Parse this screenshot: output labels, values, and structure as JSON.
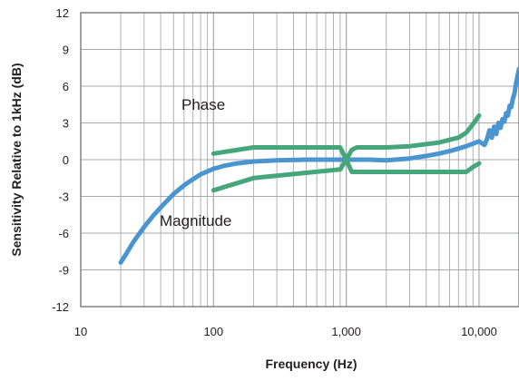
{
  "chart_data": {
    "type": "line",
    "xlabel": "Frequency (Hz)",
    "ylabel": "Sensitivity Relative to 1kHz (dB)",
    "xscale": "log",
    "xlim": [
      10,
      20000
    ],
    "ylim": [
      -12,
      12
    ],
    "grid": true,
    "legend": "none",
    "x_ticks": [
      {
        "value": 10,
        "label": "10"
      },
      {
        "value": 100,
        "label": "100"
      },
      {
        "value": 1000,
        "label": "1,000"
      },
      {
        "value": 10000,
        "label": "10,000"
      }
    ],
    "y_ticks": [
      {
        "value": 12,
        "label": "12"
      },
      {
        "value": 9,
        "label": "9"
      },
      {
        "value": 6,
        "label": "6"
      },
      {
        "value": 3,
        "label": "3"
      },
      {
        "value": 0,
        "label": "0"
      },
      {
        "value": -3,
        "label": "-3"
      },
      {
        "value": -6,
        "label": "-6"
      },
      {
        "value": -9,
        "label": "-9"
      },
      {
        "value": -12,
        "label": "-12"
      }
    ],
    "annotations": [
      {
        "text": "Phase",
        "x": 70,
        "y": 4.5
      },
      {
        "text": "Magnitude",
        "x": 60,
        "y": -4.9
      }
    ],
    "colors": {
      "magnitude": "#4a94cf",
      "phase": "#45a67c",
      "grid": "#a7a9ac",
      "frame": "#808285"
    },
    "series": [
      {
        "key": "magnitude",
        "color": "#4a94cf",
        "x": [
          20,
          22,
          25,
          30,
          35,
          40,
          50,
          60,
          70,
          80,
          100,
          120,
          150,
          200,
          300,
          500,
          700,
          1000,
          1500,
          2000,
          3000,
          4000,
          5000,
          6000,
          7000,
          8000,
          9000,
          10000,
          11000,
          11500,
          12000,
          12500,
          13000,
          13500,
          14000,
          14500,
          15000,
          15500,
          16000,
          16500,
          17000,
          17500,
          18000,
          18500,
          19000,
          20000
        ],
        "values": [
          -8.4,
          -7.7,
          -6.7,
          -5.5,
          -4.6,
          -3.9,
          -2.8,
          -2.1,
          -1.6,
          -1.2,
          -0.75,
          -0.5,
          -0.3,
          -0.15,
          -0.05,
          0,
          0,
          0,
          0,
          -0.05,
          0.1,
          0.3,
          0.5,
          0.7,
          0.9,
          1.1,
          1.3,
          1.5,
          1.2,
          1.7,
          2.4,
          1.8,
          2.7,
          2.1,
          3.0,
          2.6,
          3.3,
          3.1,
          3.8,
          3.6,
          4.4,
          4.3,
          5.0,
          5.4,
          6.2,
          7.4
        ]
      },
      {
        "key": "phase_upper",
        "color": "#45a67c",
        "x": [
          100,
          200,
          900,
          1000,
          1100,
          1200,
          2000,
          3000,
          5000,
          8000,
          9000,
          10000
        ],
        "values": [
          0.5,
          1.0,
          1.0,
          0,
          -1.0,
          -1.0,
          -1.0,
          -1.0,
          -1.0,
          -1.0,
          -0.6,
          -0.3
        ]
      },
      {
        "key": "phase_lower",
        "color": "#45a67c",
        "x": [
          100,
          200,
          900,
          1000,
          1100,
          1200,
          2000,
          3000,
          5000,
          7000,
          8000,
          9000,
          10000
        ],
        "values": [
          -2.5,
          -1.5,
          -0.8,
          0,
          0.8,
          1.0,
          1.0,
          1.1,
          1.4,
          1.8,
          2.2,
          2.9,
          3.6
        ]
      }
    ]
  }
}
